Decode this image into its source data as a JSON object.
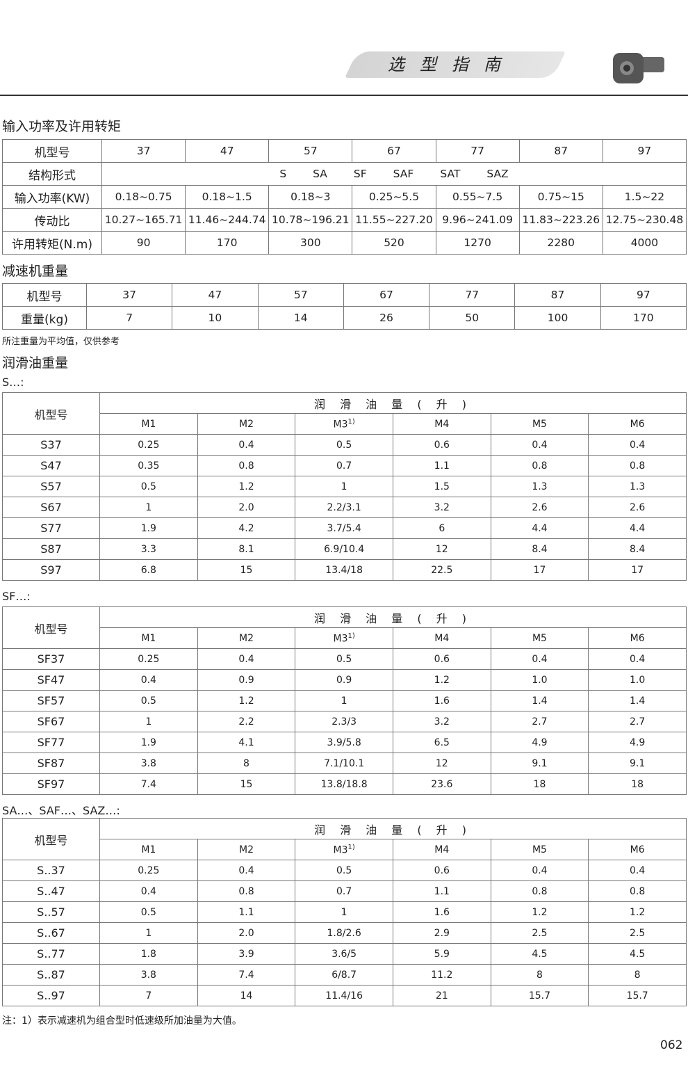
{
  "header": {
    "banner": "选型指南"
  },
  "power": {
    "title": "输入功率及许用转矩",
    "rows": [
      [
        "机型号",
        "37",
        "47",
        "57",
        "67",
        "77",
        "87",
        "97"
      ],
      [
        "输入功率(KW)",
        "0.18~0.75",
        "0.18~1.5",
        "0.18~3",
        "0.25~5.5",
        "0.55~7.5",
        "0.75~15",
        "1.5~22"
      ],
      [
        "传动比",
        "10.27~165.71",
        "11.46~244.74",
        "10.78~196.21",
        "11.55~227.20",
        "9.96~241.09",
        "11.83~223.26",
        "12.75~230.48"
      ],
      [
        "许用转矩(N.m)",
        "90",
        "170",
        "300",
        "520",
        "1270",
        "2280",
        "4000"
      ]
    ],
    "structure_label": "结构形式",
    "structure_types": [
      "S",
      "SA",
      "SF",
      "SAF",
      "SAT",
      "SAZ"
    ]
  },
  "weight": {
    "title": "减速机重量",
    "rows": [
      [
        "机型号",
        "37",
        "47",
        "57",
        "67",
        "77",
        "87",
        "97"
      ],
      [
        "重量(kg)",
        "7",
        "10",
        "14",
        "26",
        "50",
        "100",
        "170"
      ]
    ],
    "note": "所注重量为平均值，仅供参考"
  },
  "oil": {
    "title": "润滑油重量",
    "model_header": "机型号",
    "group_header": "润 滑 油 量 ( 升 )",
    "positions": [
      "M1",
      "M2",
      "M3",
      "M4",
      "M5",
      "M6"
    ],
    "m3_footnote": "1)",
    "tables": [
      {
        "label": "S…:",
        "rows": [
          [
            "S37",
            "0.25",
            "0.4",
            "0.5",
            "0.6",
            "0.4",
            "0.4"
          ],
          [
            "S47",
            "0.35",
            "0.8",
            "0.7",
            "1.1",
            "0.8",
            "0.8"
          ],
          [
            "S57",
            "0.5",
            "1.2",
            "1",
            "1.5",
            "1.3",
            "1.3"
          ],
          [
            "S67",
            "1",
            "2.0",
            "2.2/3.1",
            "3.2",
            "2.6",
            "2.6"
          ],
          [
            "S77",
            "1.9",
            "4.2",
            "3.7/5.4",
            "6",
            "4.4",
            "4.4"
          ],
          [
            "S87",
            "3.3",
            "8.1",
            "6.9/10.4",
            "12",
            "8.4",
            "8.4"
          ],
          [
            "S97",
            "6.8",
            "15",
            "13.4/18",
            "22.5",
            "17",
            "17"
          ]
        ]
      },
      {
        "label": "SF…:",
        "rows": [
          [
            "SF37",
            "0.25",
            "0.4",
            "0.5",
            "0.6",
            "0.4",
            "0.4"
          ],
          [
            "SF47",
            "0.4",
            "0.9",
            "0.9",
            "1.2",
            "1.0",
            "1.0"
          ],
          [
            "SF57",
            "0.5",
            "1.2",
            "1",
            "1.6",
            "1.4",
            "1.4"
          ],
          [
            "SF67",
            "1",
            "2.2",
            "2.3/3",
            "3.2",
            "2.7",
            "2.7"
          ],
          [
            "SF77",
            "1.9",
            "4.1",
            "3.9/5.8",
            "6.5",
            "4.9",
            "4.9"
          ],
          [
            "SF87",
            "3.8",
            "8",
            "7.1/10.1",
            "12",
            "9.1",
            "9.1"
          ],
          [
            "SF97",
            "7.4",
            "15",
            "13.8/18.8",
            "23.6",
            "18",
            "18"
          ]
        ]
      },
      {
        "label": "SA…、SAF…、SAZ…:",
        "rows": [
          [
            "S..37",
            "0.25",
            "0.4",
            "0.5",
            "0.6",
            "0.4",
            "0.4"
          ],
          [
            "S..47",
            "0.4",
            "0.8",
            "0.7",
            "1.1",
            "0.8",
            "0.8"
          ],
          [
            "S..57",
            "0.5",
            "1.1",
            "1",
            "1.6",
            "1.2",
            "1.2"
          ],
          [
            "S..67",
            "1",
            "2.0",
            "1.8/2.6",
            "2.9",
            "2.5",
            "2.5"
          ],
          [
            "S..77",
            "1.8",
            "3.9",
            "3.6/5",
            "5.9",
            "4.5",
            "4.5"
          ],
          [
            "S..87",
            "3.8",
            "7.4",
            "6/8.7",
            "11.2",
            "8",
            "8"
          ],
          [
            "S..97",
            "7",
            "14",
            "11.4/16",
            "21",
            "15.7",
            "15.7"
          ]
        ]
      }
    ],
    "footnote": "注：1）表示减速机为组合型时低速级所加油量为大值。"
  },
  "page_number": "062"
}
